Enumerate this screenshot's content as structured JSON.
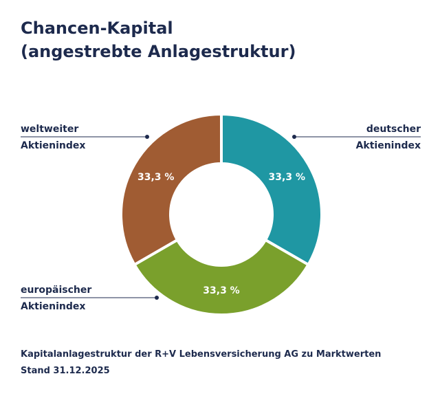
{
  "title_line1": "Chancen-Kapital",
  "title_line2": "(angestrebte Anlagestruktur)",
  "chart_data": {
    "type": "pie",
    "donut": true,
    "slices": [
      {
        "label_line1": "deutscher",
        "label_line2": "Aktienindex",
        "value": 33.3,
        "value_label": "33,3 %",
        "color": "#1f97a3"
      },
      {
        "label_line1": "europäischer",
        "label_line2": "Aktienindex",
        "value": 33.3,
        "value_label": "33,3 %",
        "color": "#7aa02c"
      },
      {
        "label_line1": "weltweiter",
        "label_line2": "Aktienindex",
        "value": 33.3,
        "value_label": "33,3 %",
        "color": "#a05c33"
      }
    ]
  },
  "footer_line1": "Kapitalanlagestruktur der R+V Lebensversicherung AG zu Marktwerten",
  "footer_line2": "Stand 31.12.2025",
  "colors": {
    "text": "#1d2a4d",
    "leader_line": "#1d2a4d"
  }
}
